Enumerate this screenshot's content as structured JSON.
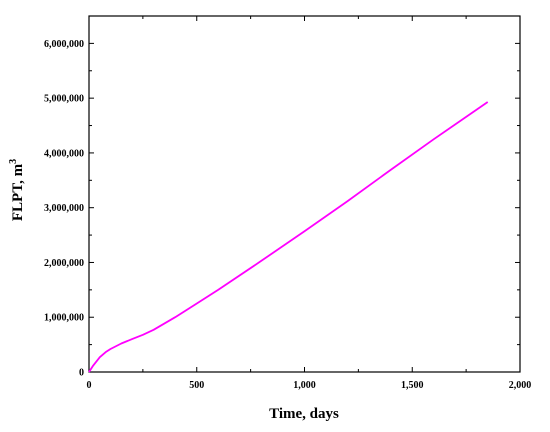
{
  "chart_data": {
    "type": "line",
    "xlabel": "Time, days",
    "ylabel_main": "FLPT, m",
    "ylabel_sup": "3",
    "xlim": [
      0,
      2000
    ],
    "ylim": [
      0,
      6500000
    ],
    "x_ticks": [
      0,
      500,
      1000,
      1500,
      2000
    ],
    "x_tick_labels": [
      "0",
      "500",
      "1,000",
      "1,500",
      "2,000"
    ],
    "y_ticks": [
      0,
      1000000,
      2000000,
      3000000,
      4000000,
      5000000,
      6000000
    ],
    "y_tick_labels": [
      "0",
      "1,000,000",
      "2,000,000",
      "3,000,000",
      "4,000,000",
      "5,000,000",
      "6,000,000"
    ],
    "grid": false,
    "series": [
      {
        "color": "#ff00ff",
        "x": [
          0,
          20,
          50,
          80,
          100,
          150,
          200,
          250,
          300,
          400,
          500,
          600,
          800,
          1000,
          1200,
          1400,
          1600,
          1850
        ],
        "y": [
          0,
          120000,
          270000,
          370000,
          420000,
          520000,
          600000,
          680000,
          770000,
          1000000,
          1250000,
          1500000,
          2030000,
          2570000,
          3120000,
          3690000,
          4250000,
          4930000
        ]
      }
    ]
  }
}
